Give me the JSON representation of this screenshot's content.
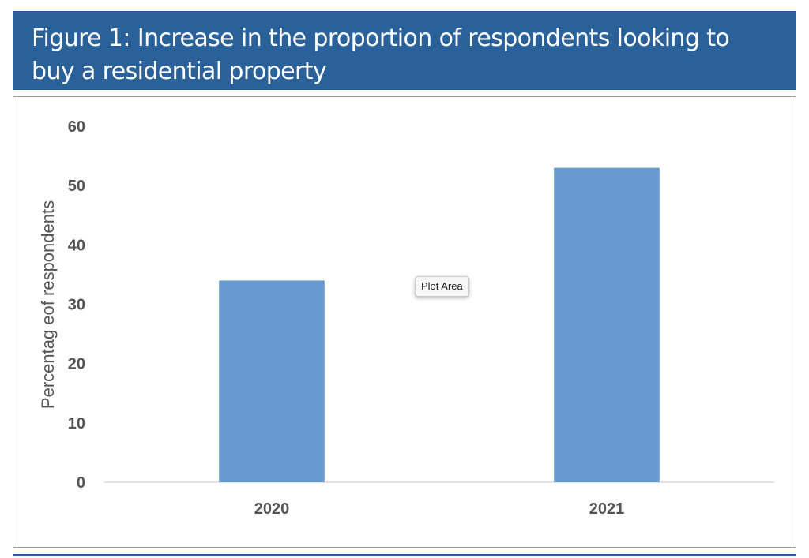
{
  "figure": {
    "title": "Figure 1: Increase in the proportion of respondents looking to buy a residential property"
  },
  "tooltip": {
    "text": "Plot Area"
  },
  "colors": {
    "banner": "#2a6199",
    "bar": "#6899cf",
    "axis_text": "#555555"
  },
  "chart_data": {
    "type": "bar",
    "categories": [
      "2020",
      "2021"
    ],
    "values": [
      34,
      53
    ],
    "title": "",
    "xlabel": "",
    "ylabel": "Percentag eof respondents",
    "ylim": [
      0,
      60
    ],
    "yticks": [
      0,
      10,
      20,
      30,
      40,
      50,
      60
    ],
    "grid": false,
    "legend": "none"
  }
}
